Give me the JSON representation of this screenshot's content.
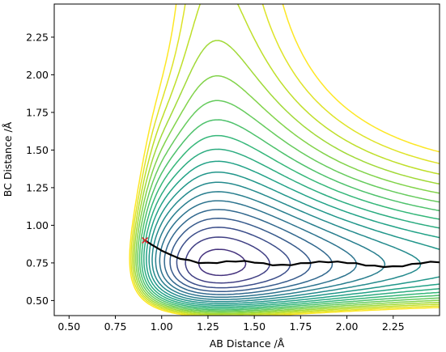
{
  "chart_data": {
    "type": "contour",
    "xlabel": "AB Distance /Å",
    "ylabel": "BC Distance /Å",
    "xlim": [
      0.42,
      2.5
    ],
    "ylim": [
      0.4,
      2.47
    ],
    "xticks": [
      "0.50",
      "0.75",
      "1.00",
      "1.25",
      "1.50",
      "1.75",
      "2.00",
      "2.25"
    ],
    "yticks": [
      "0.50",
      "0.75",
      "1.00",
      "1.25",
      "1.50",
      "1.75",
      "2.00",
      "2.25"
    ],
    "colormap": "viridis",
    "contour_levels": 22,
    "grid": false,
    "legend": "none",
    "start_point": {
      "x": 0.91,
      "y": 0.9,
      "marker": "x",
      "color": "#d62728"
    },
    "trajectory": {
      "color": "#000000",
      "points": [
        [
          0.91,
          0.9
        ],
        [
          0.95,
          0.865
        ],
        [
          1.0,
          0.835
        ],
        [
          1.05,
          0.8
        ],
        [
          1.1,
          0.78
        ],
        [
          1.15,
          0.765
        ],
        [
          1.2,
          0.752
        ],
        [
          1.25,
          0.748
        ],
        [
          1.3,
          0.752
        ],
        [
          1.35,
          0.758
        ],
        [
          1.4,
          0.762
        ],
        [
          1.45,
          0.76
        ],
        [
          1.5,
          0.755
        ],
        [
          1.55,
          0.745
        ],
        [
          1.6,
          0.737
        ],
        [
          1.65,
          0.735
        ],
        [
          1.7,
          0.738
        ],
        [
          1.75,
          0.745
        ],
        [
          1.8,
          0.752
        ],
        [
          1.85,
          0.756
        ],
        [
          1.9,
          0.757
        ],
        [
          1.95,
          0.756
        ],
        [
          2.0,
          0.752
        ],
        [
          2.05,
          0.745
        ],
        [
          2.1,
          0.736
        ],
        [
          2.15,
          0.729
        ],
        [
          2.2,
          0.726
        ],
        [
          2.25,
          0.725
        ],
        [
          2.3,
          0.73
        ],
        [
          2.35,
          0.74
        ],
        [
          2.4,
          0.75
        ],
        [
          2.45,
          0.755
        ],
        [
          2.5,
          0.757
        ]
      ]
    }
  }
}
